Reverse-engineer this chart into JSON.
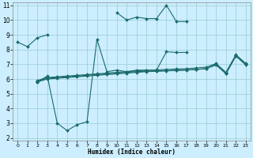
{
  "xlabel": "Humidex (Indice chaleur)",
  "background_color": "#cceeff",
  "grid_color": "#99cccc",
  "line_color": "#1a6b6b",
  "xlim": [
    -0.5,
    23.5
  ],
  "ylim": [
    1.8,
    11.2
  ],
  "yticks": [
    2,
    3,
    4,
    5,
    6,
    7,
    8,
    9,
    10,
    11
  ],
  "xticks": [
    0,
    1,
    2,
    3,
    4,
    5,
    6,
    7,
    8,
    9,
    10,
    11,
    12,
    13,
    14,
    15,
    16,
    17,
    18,
    19,
    20,
    21,
    22,
    23
  ],
  "line1_x": [
    0,
    1,
    2,
    3,
    10,
    11,
    12,
    13,
    14,
    15,
    16,
    17
  ],
  "line1_y": [
    8.5,
    8.2,
    8.8,
    9.0,
    10.5,
    10.0,
    10.2,
    10.1,
    10.1,
    11.0,
    9.9,
    9.9
  ],
  "line2_x": [
    2,
    3,
    4,
    5,
    6,
    7,
    8,
    9,
    10,
    11,
    12,
    13,
    14,
    15,
    16,
    17
  ],
  "line2_y": [
    5.8,
    6.2,
    3.0,
    2.5,
    2.9,
    3.1,
    8.7,
    6.5,
    6.6,
    6.5,
    6.6,
    6.6,
    6.6,
    7.85,
    7.8,
    7.8
  ],
  "line3_x": [
    2,
    3,
    4,
    5,
    6,
    7,
    8,
    9,
    10,
    11,
    12,
    13,
    14,
    15,
    16,
    17,
    18,
    19,
    20,
    21,
    22,
    23
  ],
  "line3_y": [
    5.85,
    6.05,
    6.1,
    6.15,
    6.2,
    6.25,
    6.3,
    6.35,
    6.4,
    6.45,
    6.5,
    6.52,
    6.55,
    6.57,
    6.6,
    6.62,
    6.65,
    6.7,
    7.0,
    6.4,
    7.6,
    7.0
  ],
  "line4_x": [
    2,
    3,
    4,
    5,
    6,
    7,
    8,
    9,
    10,
    11,
    12,
    13,
    14,
    15,
    16,
    17,
    18,
    19,
    20,
    21,
    22,
    23
  ],
  "line4_y": [
    5.9,
    6.1,
    6.15,
    6.2,
    6.25,
    6.3,
    6.35,
    6.4,
    6.45,
    6.5,
    6.55,
    6.6,
    6.62,
    6.65,
    6.68,
    6.7,
    6.75,
    6.8,
    7.05,
    6.45,
    7.65,
    7.05
  ],
  "line5_x": [
    2,
    3,
    4,
    5,
    6,
    7,
    8,
    9,
    10,
    11,
    12,
    13,
    14,
    15,
    16,
    17,
    18,
    19,
    20,
    21,
    22,
    23
  ],
  "line5_y": [
    5.8,
    6.0,
    6.05,
    6.1,
    6.15,
    6.2,
    6.25,
    6.3,
    6.35,
    6.4,
    6.45,
    6.5,
    6.52,
    6.55,
    6.58,
    6.6,
    6.65,
    6.7,
    6.95,
    6.35,
    7.55,
    6.95
  ]
}
